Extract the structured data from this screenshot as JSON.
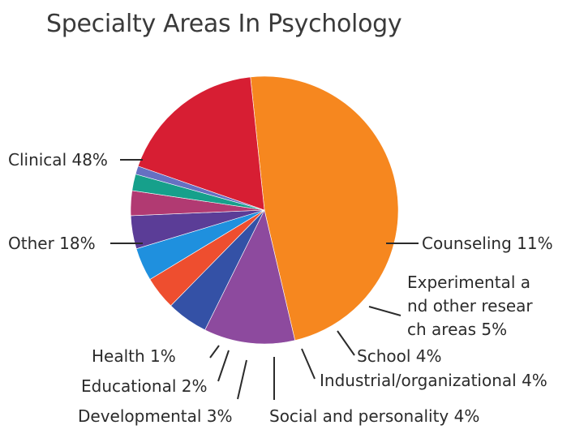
{
  "chart_data": {
    "type": "pie",
    "title": "Specialty Areas In Psychology",
    "slices": [
      {
        "label": "Clinical 48%",
        "value": 48,
        "color": "#f6871f"
      },
      {
        "label": "Counseling 11%",
        "value": 11,
        "color": "#8d4a9e"
      },
      {
        "label": "Experimental and other research areas 5%",
        "value": 5,
        "color": "#3451a6"
      },
      {
        "label": "School 4%",
        "value": 4,
        "color": "#ee4e2f"
      },
      {
        "label": "Industrial/organizational 4%",
        "value": 4,
        "color": "#1f90de"
      },
      {
        "label": "Social and personality 4%",
        "value": 4,
        "color": "#5b3d97"
      },
      {
        "label": "Developmental 3%",
        "value": 3,
        "color": "#b13a72"
      },
      {
        "label": "Educational 2%",
        "value": 2,
        "color": "#16a08b"
      },
      {
        "label": "Health 1%",
        "value": 1,
        "color": "#6670c2"
      },
      {
        "label": "Other 18%",
        "value": 18,
        "color": "#d71e33"
      }
    ]
  }
}
